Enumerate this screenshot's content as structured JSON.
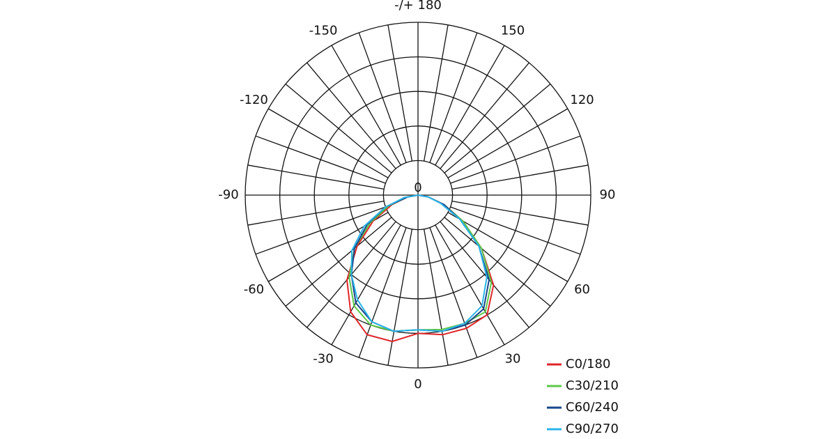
{
  "chart_data": {
    "type": "polar",
    "rlim": [
      0,
      5
    ],
    "rticks": [
      0
    ],
    "thetaticks": [
      {
        "value": 180,
        "label": "-/+ 180"
      },
      -150,
      150,
      -120,
      120,
      -90,
      90,
      -60,
      60,
      -30,
      30,
      0
    ],
    "grid": true,
    "legend": "lower right",
    "theta": [
      -90,
      -80,
      -70,
      -60,
      -50,
      -40,
      -30,
      -20,
      -10,
      0,
      10,
      20,
      30,
      40,
      50,
      60,
      70,
      80,
      90
    ],
    "series": [
      {
        "name": "C0/180",
        "color": "#e0262a",
        "values": [
          0,
          0.3,
          0.8,
          1.5,
          2.3,
          3.2,
          3.9,
          4.3,
          4.3,
          4.0,
          4.1,
          4.1,
          4.0,
          3.4,
          2.4,
          1.5,
          0.8,
          0.3,
          0
        ]
      },
      {
        "name": "C30/210",
        "color": "#5cc84a",
        "values": [
          0,
          0.3,
          0.9,
          1.6,
          2.4,
          3.1,
          3.7,
          4.0,
          4.0,
          3.9,
          3.95,
          3.95,
          3.9,
          3.3,
          2.4,
          1.5,
          0.8,
          0.3,
          0
        ]
      },
      {
        "name": "C60/240",
        "color": "#17468a",
        "values": [
          0,
          0.3,
          1.0,
          1.7,
          2.4,
          3.0,
          3.6,
          3.9,
          4.0,
          3.9,
          4.0,
          4.0,
          3.8,
          3.2,
          2.3,
          1.4,
          0.8,
          0.3,
          0
        ]
      },
      {
        "name": "C90/270",
        "color": "#2bb4e8",
        "values": [
          0,
          0.4,
          1.0,
          1.8,
          2.5,
          3.0,
          3.5,
          3.9,
          4.0,
          3.9,
          4.0,
          3.95,
          3.7,
          3.1,
          2.3,
          1.4,
          0.7,
          0.3,
          0
        ]
      }
    ]
  }
}
